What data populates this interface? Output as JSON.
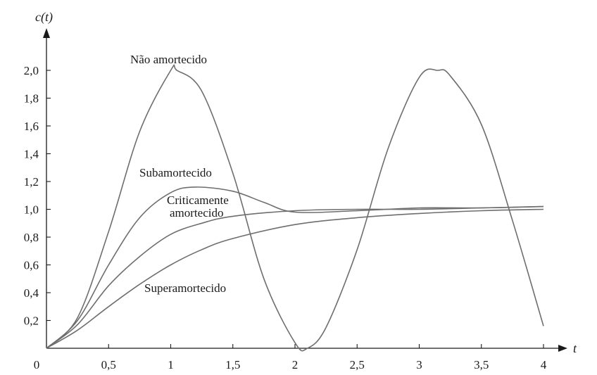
{
  "chart_data": {
    "type": "line",
    "title": "",
    "xlabel": "t",
    "ylabel": "c(t)",
    "xlim": [
      0,
      4
    ],
    "ylim": [
      0,
      2.2
    ],
    "grid": false,
    "x_ticks": [
      "0",
      "0,5",
      "1",
      "1,5",
      "2",
      "2,5",
      "3",
      "3,5",
      "4"
    ],
    "y_ticks": [
      "0,2",
      "0,4",
      "0,6",
      "0,8",
      "1,0",
      "1,2",
      "1,4",
      "1,6",
      "1,8",
      "2,0"
    ],
    "series": [
      {
        "name": "Não amortecido",
        "x": [
          0,
          0.25,
          0.5,
          0.75,
          1.0,
          1.05,
          1.25,
          1.5,
          1.75,
          2.0,
          2.1,
          2.25,
          2.5,
          2.75,
          3.0,
          3.15,
          3.25,
          3.5,
          3.75,
          4.0
        ],
        "y": [
          0,
          0.22,
          0.84,
          1.56,
          2.0,
          2.0,
          1.85,
          1.26,
          0.5,
          0.04,
          0.0,
          0.15,
          0.71,
          1.44,
          1.95,
          2.0,
          1.96,
          1.61,
          0.92,
          0.16
        ]
      },
      {
        "name": "Subamortecido",
        "x": [
          0,
          0.25,
          0.5,
          0.75,
          1.0,
          1.2,
          1.5,
          1.75,
          2.0,
          2.5,
          3.0,
          3.5,
          4.0
        ],
        "y": [
          0,
          0.2,
          0.6,
          0.94,
          1.12,
          1.16,
          1.13,
          1.05,
          0.98,
          0.99,
          1.01,
          1.01,
          1.02
        ]
      },
      {
        "name": "Criticamente amortecido",
        "x": [
          0,
          0.25,
          0.5,
          0.75,
          1.0,
          1.25,
          1.5,
          2.0,
          2.5,
          3.0,
          3.5,
          4.0
        ],
        "y": [
          0,
          0.17,
          0.45,
          0.66,
          0.82,
          0.9,
          0.95,
          0.99,
          1.0,
          1.0,
          1.01,
          1.02
        ]
      },
      {
        "name": "Superamortecido",
        "x": [
          0,
          0.25,
          0.5,
          0.75,
          1.0,
          1.25,
          1.5,
          2.0,
          2.5,
          3.0,
          3.5,
          4.0
        ],
        "y": [
          0,
          0.13,
          0.3,
          0.46,
          0.6,
          0.71,
          0.79,
          0.89,
          0.94,
          0.97,
          0.99,
          1.0
        ]
      }
    ]
  }
}
